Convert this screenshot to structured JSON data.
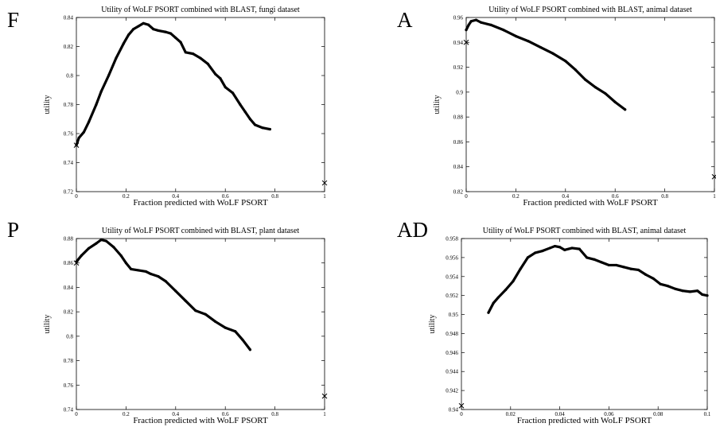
{
  "chart_data": [
    {
      "panel": "F",
      "type": "scatter",
      "title": "Utility of WoLF PSORT combined with BLAST, fungi dataset",
      "xlabel": "Fraction predicted with WoLF PSORT",
      "ylabel": "utility",
      "xlim": [
        0,
        1
      ],
      "ylim": [
        0.72,
        0.84
      ],
      "xticks": [
        0,
        0.2,
        0.4,
        0.6,
        0.8,
        1
      ],
      "xtick_labels": [
        "0",
        "0.2",
        "0.4",
        "0.6",
        "0.8",
        "1"
      ],
      "yticks": [
        0.72,
        0.74,
        0.76,
        0.78,
        0.8,
        0.82,
        0.84
      ],
      "ytick_labels": [
        "0.72",
        "0.74",
        "0.76",
        "0.78",
        "0.8",
        "0.82",
        "0.84"
      ],
      "grid": false,
      "series": [
        {
          "values": [
            [
              0.0,
              0.752
            ],
            [
              0.01,
              0.757
            ],
            [
              0.03,
              0.761
            ],
            [
              0.05,
              0.768
            ],
            [
              0.08,
              0.78
            ],
            [
              0.1,
              0.789
            ],
            [
              0.13,
              0.8
            ],
            [
              0.16,
              0.812
            ],
            [
              0.19,
              0.822
            ],
            [
              0.21,
              0.828
            ],
            [
              0.23,
              0.832
            ],
            [
              0.25,
              0.834
            ],
            [
              0.27,
              0.836
            ],
            [
              0.29,
              0.835
            ],
            [
              0.31,
              0.832
            ],
            [
              0.33,
              0.831
            ],
            [
              0.36,
              0.83
            ],
            [
              0.38,
              0.829
            ],
            [
              0.4,
              0.826
            ],
            [
              0.42,
              0.823
            ],
            [
              0.44,
              0.816
            ],
            [
              0.47,
              0.815
            ],
            [
              0.5,
              0.812
            ],
            [
              0.53,
              0.808
            ],
            [
              0.56,
              0.801
            ],
            [
              0.58,
              0.798
            ],
            [
              0.6,
              0.792
            ],
            [
              0.63,
              0.788
            ],
            [
              0.66,
              0.78
            ],
            [
              0.68,
              0.775
            ],
            [
              0.7,
              0.77
            ],
            [
              0.72,
              0.766
            ],
            [
              0.75,
              0.764
            ],
            [
              0.78,
              0.763
            ]
          ]
        }
      ],
      "markers": [
        [
          0.0,
          0.752
        ],
        [
          1.0,
          0.726
        ]
      ]
    },
    {
      "panel": "A",
      "type": "scatter",
      "title": "Utility of WoLF PSORT combined with BLAST, animal dataset",
      "xlabel": "Fraction predicted with WoLF PSORT",
      "ylabel": "utility",
      "xlim": [
        0,
        1
      ],
      "ylim": [
        0.82,
        0.96
      ],
      "xticks": [
        0,
        0.2,
        0.4,
        0.6,
        0.8,
        1
      ],
      "xtick_labels": [
        "0",
        "0.2",
        "0.4",
        "0.6",
        "0.8",
        "1"
      ],
      "yticks": [
        0.82,
        0.84,
        0.86,
        0.88,
        0.9,
        0.92,
        0.94,
        0.96
      ],
      "ytick_labels": [
        "0.82",
        "0.84",
        "0.86",
        "0.88",
        "0.9",
        "0.92",
        "0.94",
        "0.96"
      ],
      "grid": false,
      "series": [
        {
          "values": [
            [
              0.0,
              0.95
            ],
            [
              0.01,
              0.954
            ],
            [
              0.02,
              0.957
            ],
            [
              0.04,
              0.958
            ],
            [
              0.06,
              0.956
            ],
            [
              0.1,
              0.954
            ],
            [
              0.15,
              0.95
            ],
            [
              0.2,
              0.945
            ],
            [
              0.25,
              0.941
            ],
            [
              0.3,
              0.936
            ],
            [
              0.35,
              0.931
            ],
            [
              0.4,
              0.925
            ],
            [
              0.44,
              0.918
            ],
            [
              0.48,
              0.91
            ],
            [
              0.52,
              0.904
            ],
            [
              0.56,
              0.899
            ],
            [
              0.6,
              0.892
            ],
            [
              0.64,
              0.886
            ]
          ]
        }
      ],
      "markers": [
        [
          0.0,
          0.94
        ],
        [
          1.0,
          0.832
        ]
      ]
    },
    {
      "panel": "P",
      "type": "scatter",
      "title": "Utility of WoLF PSORT combined with BLAST, plant dataset",
      "xlabel": "Fraction predicted with WoLF PSORT",
      "ylabel": "utility",
      "xlim": [
        0,
        1
      ],
      "ylim": [
        0.74,
        0.88
      ],
      "xticks": [
        0,
        0.2,
        0.4,
        0.6,
        0.8,
        1
      ],
      "xtick_labels": [
        "0",
        "0.2",
        "0.4",
        "0.6",
        "0.8",
        "1"
      ],
      "yticks": [
        0.74,
        0.76,
        0.78,
        0.8,
        0.82,
        0.84,
        0.86,
        0.88
      ],
      "ytick_labels": [
        "0.74",
        "0.76",
        "0.78",
        "0.8",
        "0.82",
        "0.84",
        "0.86",
        "0.88"
      ],
      "grid": false,
      "series": [
        {
          "values": [
            [
              0.0,
              0.861
            ],
            [
              0.02,
              0.866
            ],
            [
              0.05,
              0.872
            ],
            [
              0.08,
              0.876
            ],
            [
              0.1,
              0.879
            ],
            [
              0.12,
              0.878
            ],
            [
              0.15,
              0.873
            ],
            [
              0.18,
              0.866
            ],
            [
              0.2,
              0.86
            ],
            [
              0.22,
              0.855
            ],
            [
              0.25,
              0.854
            ],
            [
              0.28,
              0.853
            ],
            [
              0.3,
              0.851
            ],
            [
              0.33,
              0.849
            ],
            [
              0.36,
              0.845
            ],
            [
              0.4,
              0.837
            ],
            [
              0.44,
              0.829
            ],
            [
              0.48,
              0.821
            ],
            [
              0.52,
              0.818
            ],
            [
              0.56,
              0.812
            ],
            [
              0.6,
              0.807
            ],
            [
              0.64,
              0.804
            ],
            [
              0.67,
              0.797
            ],
            [
              0.7,
              0.789
            ]
          ]
        }
      ],
      "markers": [
        [
          0.0,
          0.86
        ],
        [
          1.0,
          0.751
        ]
      ]
    },
    {
      "panel": "AD",
      "type": "scatter",
      "title": "Utility of WoLF PSORT combined with BLAST, animal dataset",
      "xlabel": "Fraction predicted with WoLF PSORT",
      "ylabel": "utility",
      "xlim": [
        0,
        0.1
      ],
      "ylim": [
        0.94,
        0.958
      ],
      "xticks": [
        0,
        0.02,
        0.04,
        0.06,
        0.08,
        0.1
      ],
      "xtick_labels": [
        "0",
        "0.02",
        "0.04",
        "0.06",
        "0.08",
        "0.1"
      ],
      "yticks": [
        0.94,
        0.942,
        0.944,
        0.946,
        0.948,
        0.95,
        0.952,
        0.954,
        0.956,
        0.958
      ],
      "ytick_labels": [
        "0.94",
        "0.942",
        "0.944",
        "0.946",
        "0.948",
        "0.95",
        "0.952",
        "0.954",
        "0.956",
        "0.958"
      ],
      "grid": false,
      "series": [
        {
          "values": [
            [
              0.011,
              0.9502
            ],
            [
              0.013,
              0.9512
            ],
            [
              0.015,
              0.9518
            ],
            [
              0.018,
              0.9526
            ],
            [
              0.021,
              0.9535
            ],
            [
              0.024,
              0.9548
            ],
            [
              0.027,
              0.956
            ],
            [
              0.03,
              0.9565
            ],
            [
              0.033,
              0.9567
            ],
            [
              0.036,
              0.957
            ],
            [
              0.038,
              0.9572
            ],
            [
              0.04,
              0.9571
            ],
            [
              0.042,
              0.9568
            ],
            [
              0.045,
              0.957
            ],
            [
              0.048,
              0.9569
            ],
            [
              0.051,
              0.956
            ],
            [
              0.054,
              0.9558
            ],
            [
              0.057,
              0.9555
            ],
            [
              0.06,
              0.9552
            ],
            [
              0.063,
              0.9552
            ],
            [
              0.066,
              0.955
            ],
            [
              0.069,
              0.9548
            ],
            [
              0.072,
              0.9547
            ],
            [
              0.075,
              0.9542
            ],
            [
              0.078,
              0.9538
            ],
            [
              0.081,
              0.9532
            ],
            [
              0.084,
              0.953
            ],
            [
              0.087,
              0.9527
            ],
            [
              0.09,
              0.9525
            ],
            [
              0.093,
              0.9524
            ],
            [
              0.096,
              0.9525
            ],
            [
              0.098,
              0.9521
            ],
            [
              0.1,
              0.952
            ]
          ]
        }
      ],
      "markers": [
        [
          0.0,
          0.9404
        ]
      ]
    }
  ]
}
